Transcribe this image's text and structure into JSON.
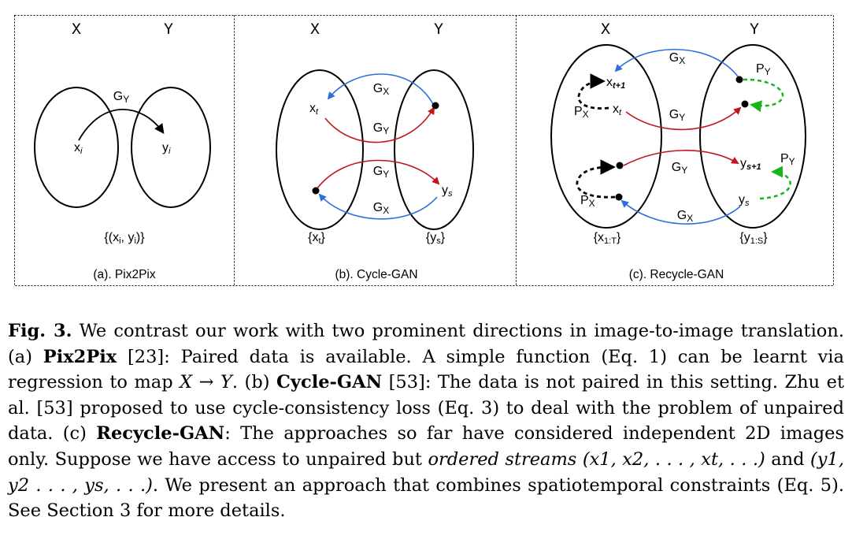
{
  "panels": [
    {
      "id": "a",
      "x_label": "X",
      "y_label": "Y",
      "left_node": "xi",
      "right_node": "yi",
      "mapping": "GY",
      "set_label": "{(xi, yi)}",
      "caption": "(a). Pix2Pix"
    },
    {
      "id": "b",
      "x_label": "X",
      "y_label": "Y",
      "node_xt": "xt",
      "node_ys": "ys",
      "arrow_top_blue": "GX",
      "arrow_top_red": "GY",
      "arrow_bottom_red": "GY",
      "arrow_bottom_blue": "GX",
      "set_left": "{xt}",
      "set_right": "{ys}",
      "caption": "(b). Cycle-GAN"
    },
    {
      "id": "c",
      "x_label": "X",
      "y_label": "Y",
      "node_xt1": "xt+1",
      "node_xt": "xt",
      "node_ys1": "ys+1",
      "node_ys": "ys",
      "px_top": "PX",
      "px_bottom": "PX",
      "py_top": "PY",
      "py_bottom": "PY",
      "arrow_top_blue": "GX",
      "arrow_top_red": "GY",
      "arrow_bottom_red": "GY",
      "arrow_bottom_blue": "GX",
      "set_left": "{x1:T}",
      "set_right": "{y1:S}",
      "caption": "(c). Recycle-GAN"
    }
  ],
  "caption": {
    "label": "Fig. 3.",
    "part1": " We contrast our work with two prominent directions in image-to-image translation. (a) ",
    "pix2pix": "Pix2Pix",
    "part2": " [23]: Paired data is available. A simple function (Eq. 1) can be learnt via regression to map ",
    "map_expr": "X → Y",
    "part3": ". (b) ",
    "cyclegan": "Cycle-GAN",
    "part4": " [53]: The data is not paired in this setting. Zhu et al. [53] proposed to use cycle-consistency loss (Eq. 3) to deal with the problem of unpaired data. (c) ",
    "recyclegan": "Recycle-GAN",
    "part5": ": The approaches so far have considered independent 2D images only. Suppose we have access to unpaired but ",
    "ordered": "ordered streams",
    "seq_x": " (x1, x2, . . . , xt, . . .)",
    "part6": " and ",
    "seq_y": "(y1, y2 . . . , ys, . . .)",
    "part7": ". We present an approach that combines spatiotemporal constraints (Eq. 5). See Section 3 for more details."
  },
  "colors": {
    "red_arrow": "#c0151b",
    "blue_arrow": "#2f6fdc",
    "green_arrow": "#18b418",
    "black": "#000000"
  }
}
